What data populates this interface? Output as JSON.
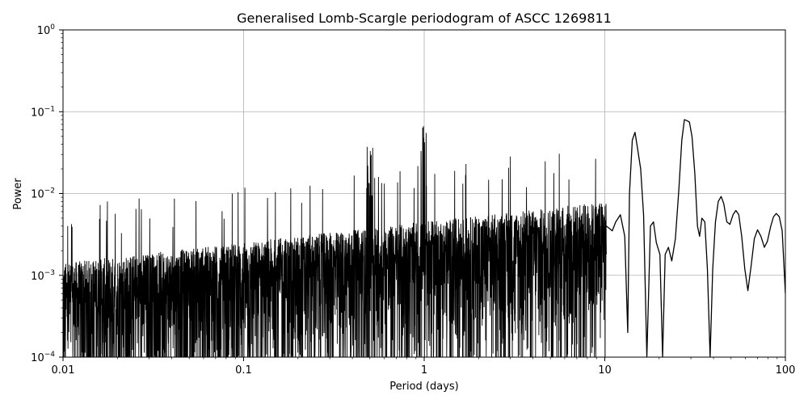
{
  "chart_data": {
    "type": "line",
    "title": "Generalised Lomb-Scargle periodogram of ASCC 1269811",
    "xlabel": "Period (days)",
    "ylabel": "Power",
    "xscale": "log",
    "yscale": "log",
    "xlim": [
      0.01,
      100
    ],
    "ylim": [
      0.0001,
      1
    ],
    "grid": true,
    "line_color": "#000000",
    "x_ticks": [
      {
        "value": 0.01,
        "label": "0.01"
      },
      {
        "value": 0.1,
        "label": "0.1"
      },
      {
        "value": 1,
        "label": "1"
      },
      {
        "value": 10,
        "label": "10"
      },
      {
        "value": 100,
        "label": "100"
      }
    ],
    "y_ticks": [
      {
        "value": 0.0001,
        "base": "10",
        "exp": "−4"
      },
      {
        "value": 0.001,
        "base": "10",
        "exp": "−3"
      },
      {
        "value": 0.01,
        "base": "10",
        "exp": "−2"
      },
      {
        "value": 0.1,
        "base": "10",
        "exp": "−1"
      },
      {
        "value": 1,
        "base": "10",
        "exp": "0"
      }
    ],
    "series": [
      {
        "x": [
          10.2,
          11.0,
          11.5,
          12.2,
          12.9,
          13.4,
          13.7,
          14.2,
          14.7,
          15.2,
          15.8,
          16.4,
          17.1,
          17.9,
          18.6,
          19.3,
          20.2,
          20.9,
          21.6,
          22.5,
          23.5,
          24.6,
          25.7,
          26.7,
          27.6,
          28.4,
          29.4,
          30.4,
          31.5,
          32.6,
          33.5,
          34.5,
          35.8,
          37.0,
          38.3,
          39.6,
          41.0,
          42.5,
          44.1,
          45.6,
          47.4,
          49.3,
          51.3,
          53.2,
          55.2,
          57.3,
          59.6,
          62.0,
          64.6,
          67.3,
          70.1,
          73.2,
          76.5,
          79.5,
          83.0,
          86.0,
          89.0,
          92.5,
          96.0,
          100.0
        ],
        "y": [
          0.004,
          0.0035,
          0.0045,
          0.0055,
          0.003,
          0.0002,
          0.01,
          0.045,
          0.056,
          0.035,
          0.02,
          0.0055,
          0.0001,
          0.004,
          0.0045,
          0.0025,
          0.0018,
          0.0001,
          0.0018,
          0.0022,
          0.0015,
          0.0028,
          0.011,
          0.045,
          0.08,
          0.078,
          0.075,
          0.05,
          0.018,
          0.004,
          0.003,
          0.005,
          0.0045,
          0.0012,
          0.0001,
          0.0012,
          0.0045,
          0.008,
          0.0092,
          0.0075,
          0.0045,
          0.0042,
          0.0055,
          0.0062,
          0.0055,
          0.003,
          0.0012,
          0.00065,
          0.0013,
          0.0028,
          0.0036,
          0.003,
          0.0022,
          0.0026,
          0.004,
          0.0052,
          0.0057,
          0.0052,
          0.0035,
          0.0006
        ]
      }
    ]
  }
}
